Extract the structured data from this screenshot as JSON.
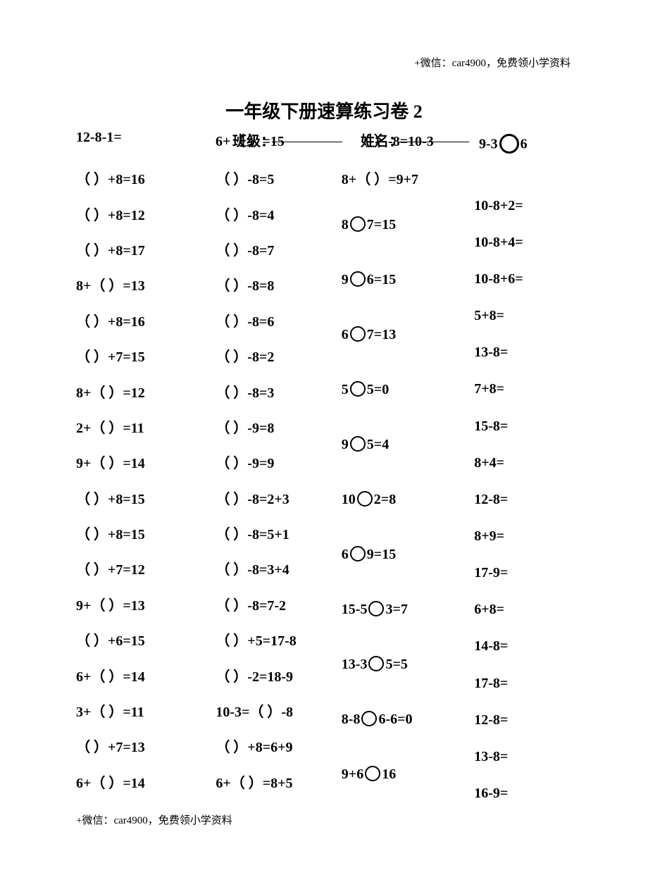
{
  "header_note": "+微信：car4900，免费领小学资料",
  "title": "一年级下册速算练习卷 2",
  "meta": {
    "class_label": "班级：",
    "name_label": "姓名："
  },
  "overlay": {
    "o1": "12-8-1=",
    "o2_a": "6+（    ）=15",
    "o3_a": "（    ）-8=10-3",
    "o4_a": "9-3",
    "o4_b": "6"
  },
  "col1": [
    "（    ）+8=16",
    "（    ）+8=12",
    "（    ）+8=17",
    "8+（    ）=13",
    "（    ）+8=16",
    "（    ）+7=15",
    "8+（    ）=12",
    "2+（    ）=11",
    "9+（    ）=14",
    "（    ）+8=15",
    "（    ）+8=15",
    "（    ）+7=12",
    "9+（    ）=13",
    "（    ）+6=15",
    "6+（    ）=14",
    "3+（    ）=11",
    "（    ）+7=13",
    "6+（    ）=14"
  ],
  "col2": [
    "（    ）-8=5",
    "（    ）-8=4",
    "（    ）-8=7",
    "（    ）-8=8",
    "（    ）-8=6",
    "（    ）-8=2",
    "（    ）-8=3",
    "（    ）-9=8",
    "（    ）-9=9",
    "（    ）-8=2+3",
    "（    ）-8=5+1",
    "（    ）-8=3+4",
    "（    ）-8=7-2",
    "（    ）+5=17-8",
    "（    ）-2=18-9",
    "10-3=（    ）-8",
    "（    ）+8=6+9",
    "6+（    ）=8+5"
  ],
  "col3": [
    {
      "t": "plain",
      "v": "8+（    ）=9+7"
    },
    {
      "t": "circ",
      "a": "8",
      "b": "7=15"
    },
    {
      "t": "circ",
      "a": "9",
      "b": "6=15"
    },
    {
      "t": "circ",
      "a": "6",
      "b": "7=13"
    },
    {
      "t": "circ",
      "a": "5",
      "b": "5=0"
    },
    {
      "t": "circ",
      "a": "9",
      "b": "5=4"
    },
    {
      "t": "circ",
      "a": "10",
      "b": "2=8"
    },
    {
      "t": "circ",
      "a": "6",
      "b": "9=15"
    },
    {
      "t": "circ",
      "a": "15-5",
      "b": "3=7"
    },
    {
      "t": "circ",
      "a": "13-3",
      "b": "5=5"
    },
    {
      "t": "circ",
      "a": "8-8",
      "b": "6-6=0"
    },
    {
      "t": "circ",
      "a": "9+6",
      "b": "16"
    }
  ],
  "col4": [
    "10-8+2=",
    "10-8+4=",
    "10-8+6=",
    "5+8=",
    "13-8=",
    "7+8=",
    "15-8=",
    "8+4=",
    "12-8=",
    "8+9=",
    "17-9=",
    "6+8=",
    "14-8=",
    "17-8=",
    "12-8=",
    "13-8=",
    "16-9="
  ],
  "footer_note": "+微信：car4900，免费领小学资料"
}
